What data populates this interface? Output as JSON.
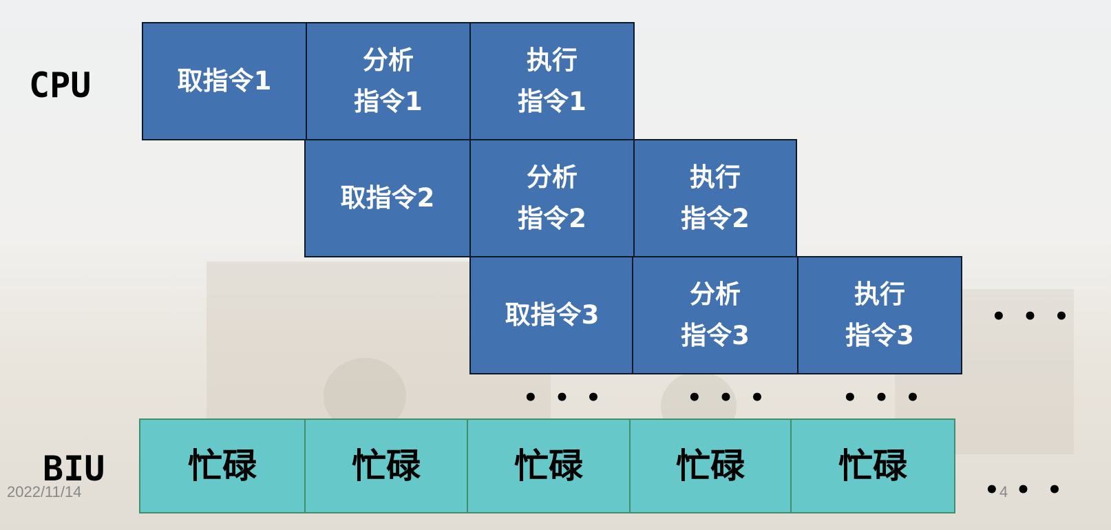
{
  "labels": {
    "cpu": "CPU",
    "biu": "BIU"
  },
  "cpu_rows": [
    {
      "fetch": "取指令1",
      "analyze": [
        "分析",
        "指令1"
      ],
      "execute": [
        "执行",
        "指令1"
      ]
    },
    {
      "fetch": "取指令2",
      "analyze": [
        "分析",
        "指令2"
      ],
      "execute": [
        "执行",
        "指令2"
      ]
    },
    {
      "fetch": "取指令3",
      "analyze": [
        "分析",
        "指令3"
      ],
      "execute": [
        "执行",
        "指令3"
      ]
    }
  ],
  "biu_cells": [
    "忙碌",
    "忙碌",
    "忙碌",
    "忙碌",
    "忙碌"
  ],
  "ellipsis": "• • •",
  "footer": {
    "date": "2022/11/14",
    "page": "4"
  },
  "colors": {
    "cpu_fill": "#4272b0",
    "biu_fill": "#66c8c8",
    "biu_border": "#3f8f6a"
  }
}
